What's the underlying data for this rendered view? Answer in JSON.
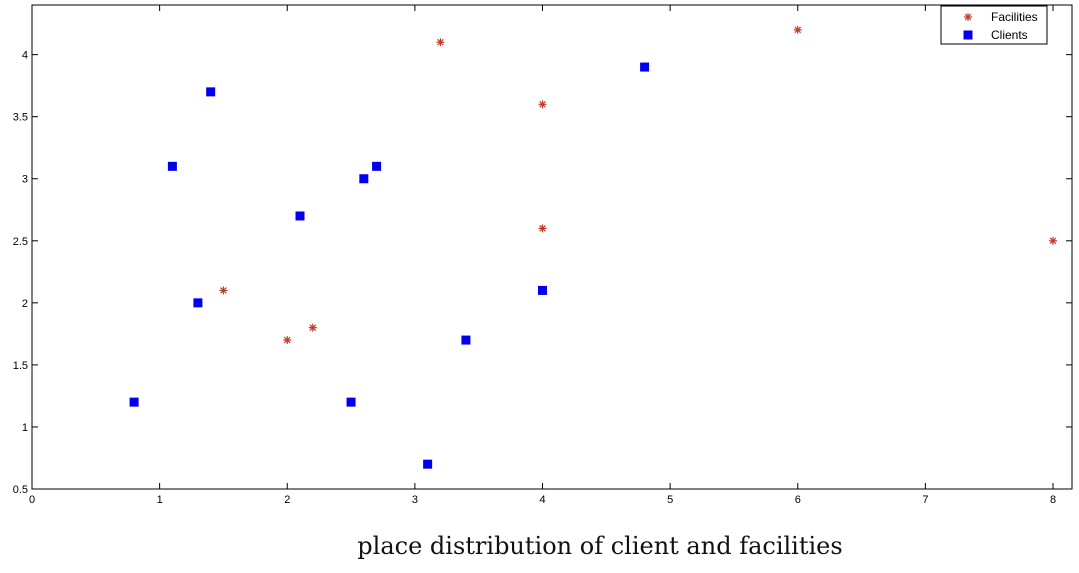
{
  "caption": "place distribution of client and facilities",
  "chart_data": {
    "type": "scatter",
    "xlim": [
      0,
      8
    ],
    "ylim": [
      0.5,
      4.4
    ],
    "xticks": [
      0,
      1,
      2,
      3,
      4,
      5,
      6,
      7,
      8
    ],
    "yticks": [
      0.5,
      1,
      1.5,
      2,
      2.5,
      3,
      3.5,
      4
    ],
    "xtick_labels": [
      "0",
      "1",
      "2",
      "3",
      "4",
      "5",
      "6",
      "7",
      "8"
    ],
    "ytick_labels": [
      "0.5",
      "1",
      "1.5",
      "2",
      "2.5",
      "3",
      "3.5",
      "4"
    ],
    "grid": false,
    "legend_position": "top-right",
    "series": [
      {
        "name": "Facilities",
        "marker": "asterisk",
        "color": "#c0392b",
        "points": [
          {
            "x": 1.5,
            "y": 2.1
          },
          {
            "x": 2.0,
            "y": 1.7
          },
          {
            "x": 2.2,
            "y": 1.8
          },
          {
            "x": 3.2,
            "y": 4.1
          },
          {
            "x": 4.0,
            "y": 3.6
          },
          {
            "x": 4.0,
            "y": 2.6
          },
          {
            "x": 6.0,
            "y": 4.2
          },
          {
            "x": 8.0,
            "y": 2.5
          }
        ]
      },
      {
        "name": "Clients",
        "marker": "square",
        "color": "#0000ee",
        "points": [
          {
            "x": 0.8,
            "y": 1.2
          },
          {
            "x": 1.1,
            "y": 3.1
          },
          {
            "x": 1.3,
            "y": 2.0
          },
          {
            "x": 1.4,
            "y": 3.7
          },
          {
            "x": 2.1,
            "y": 2.7
          },
          {
            "x": 2.5,
            "y": 1.2
          },
          {
            "x": 2.6,
            "y": 3.0
          },
          {
            "x": 2.7,
            "y": 3.1
          },
          {
            "x": 3.1,
            "y": 0.7
          },
          {
            "x": 3.4,
            "y": 1.7
          },
          {
            "x": 4.0,
            "y": 2.1
          },
          {
            "x": 4.8,
            "y": 3.9
          }
        ]
      }
    ]
  }
}
